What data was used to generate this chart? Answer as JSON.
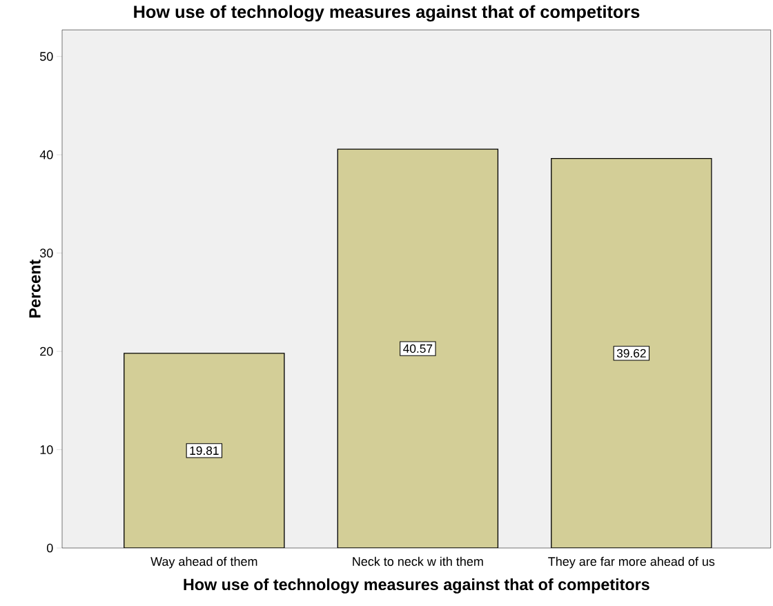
{
  "chart_data": {
    "type": "bar",
    "title": "How use of technology measures against that of competitors",
    "xlabel": "How use of technology measures against that of competitors",
    "ylabel": "Percent",
    "categories": [
      "Way ahead of them",
      "Neck to neck w ith them",
      "They are far more ahead of us"
    ],
    "values": [
      19.81,
      40.57,
      39.62
    ],
    "color": "#d3ce97",
    "ylim": [
      0,
      52.7
    ],
    "yticks": [
      0,
      10,
      20,
      30,
      40,
      50
    ],
    "grid": false,
    "data_labels": true
  }
}
